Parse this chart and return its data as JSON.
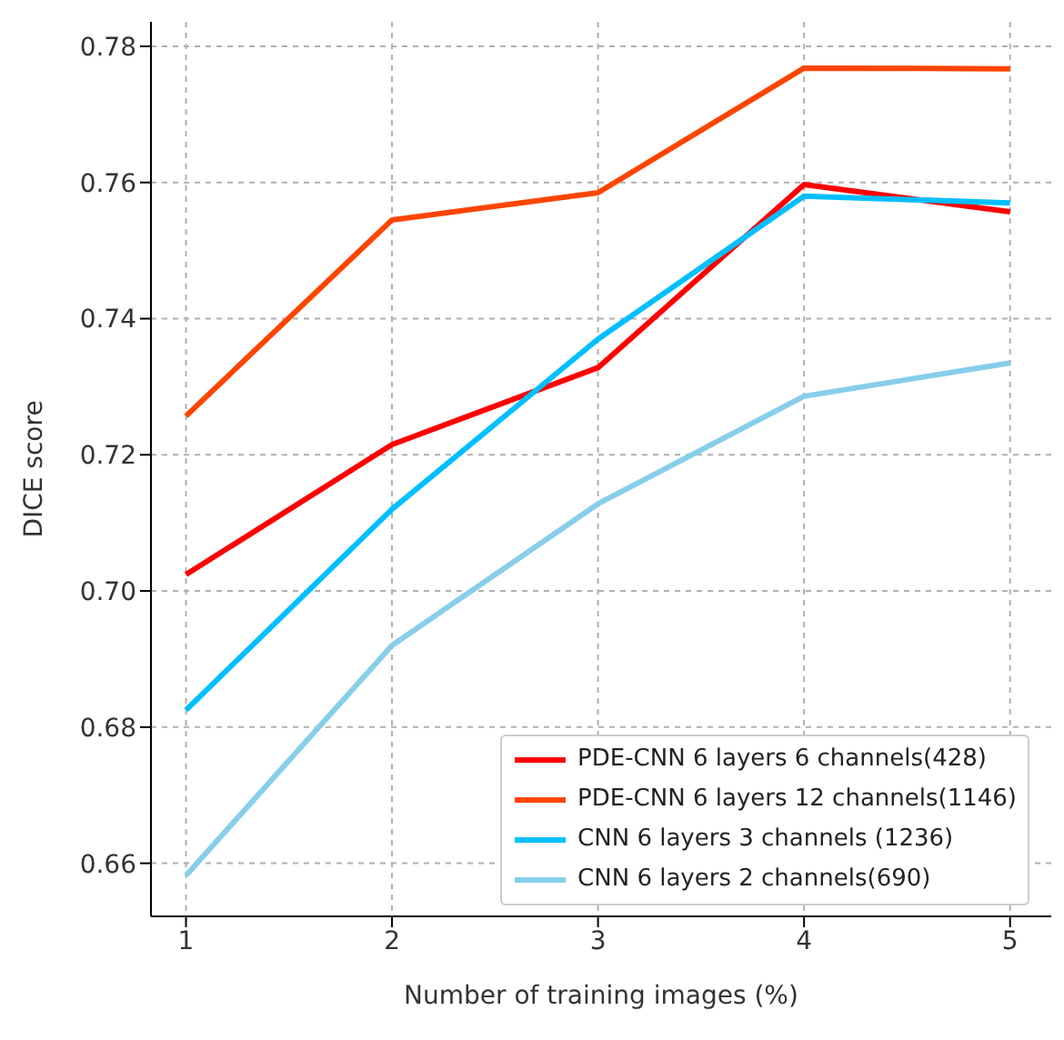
{
  "chart_data": {
    "type": "line",
    "xlabel": "Number of training images (%)",
    "ylabel": "DICE score",
    "x": [
      1,
      2,
      3,
      4,
      5
    ],
    "xlim": [
      0.83,
      5.2
    ],
    "xticks": [
      1,
      2,
      3,
      4,
      5
    ],
    "ylim": [
      0.6522,
      0.7836
    ],
    "yticks": [
      {
        "value": 0.66,
        "label": "0.66"
      },
      {
        "value": 0.68,
        "label": "0.68"
      },
      {
        "value": 0.7,
        "label": "0.70"
      },
      {
        "value": 0.72,
        "label": "0.72"
      },
      {
        "value": 0.74,
        "label": "0.74"
      },
      {
        "value": 0.76,
        "label": "0.76"
      },
      {
        "value": 0.78,
        "label": "0.78"
      }
    ],
    "grid": true,
    "legend": "bottom right",
    "marker": "none",
    "line_style": "solid",
    "series": [
      {
        "name": "PDE-CNN 6 layers 6 channels(428)",
        "color": "#ff0000",
        "values": [
          0.7024,
          0.7215,
          0.7328,
          0.7597,
          0.7557
        ]
      },
      {
        "name": "PDE-CNN 6 layers 12 channels(1146)",
        "color": "#ff4500",
        "values": [
          0.7257,
          0.7545,
          0.7585,
          0.7768,
          0.7767
        ]
      },
      {
        "name": "CNN 6 layers 3 channels (1236)",
        "color": "#00bfff",
        "values": [
          0.6825,
          0.712,
          0.737,
          0.758,
          0.757
        ]
      },
      {
        "name": "CNN 6 layers 2 channels(690)",
        "color": "#87ceeb",
        "values": [
          0.6582,
          0.692,
          0.7128,
          0.7286,
          0.7335
        ]
      }
    ]
  }
}
